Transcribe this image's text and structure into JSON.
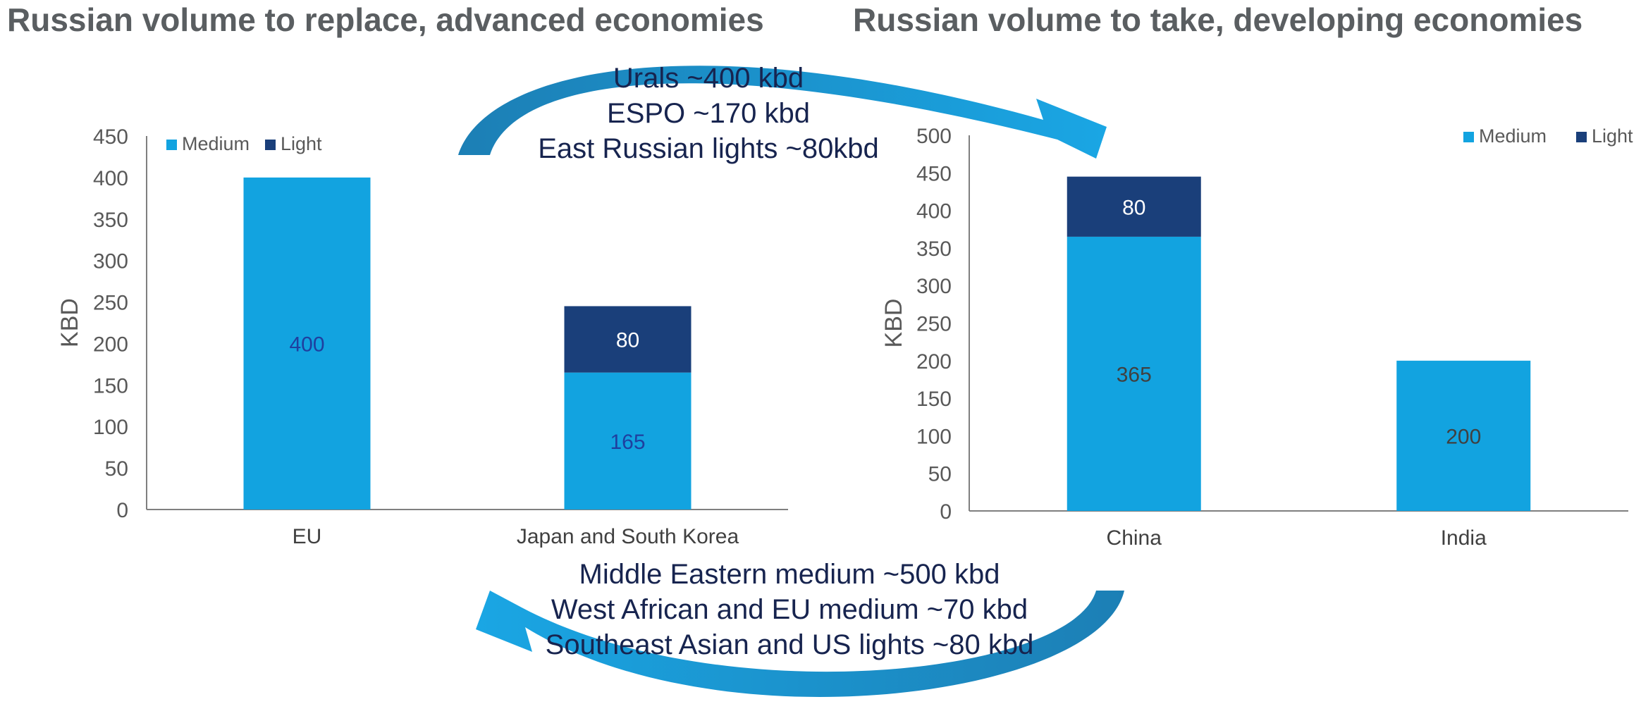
{
  "titles": {
    "left": "Russian volume to replace, advanced economies",
    "right": "Russian volume to take, developing economies"
  },
  "annotations": {
    "top": [
      "Urals ~400 kbd",
      "ESPO ~170 kbd",
      "East Russian lights ~80kbd"
    ],
    "bottom": [
      "Middle Eastern medium ~500 kbd",
      "West African and EU medium ~70 kbd",
      "Southeast Asian and US lights ~80 kbd"
    ]
  },
  "colors": {
    "medium": "#12a3e0",
    "light": "#1a3f7a",
    "arrow": "#1aa0db",
    "axis": "#7f7f7f"
  },
  "chart_data": [
    {
      "type": "bar",
      "stacked": true,
      "categories": [
        "EU",
        "Japan and South Korea"
      ],
      "series": [
        {
          "name": "Medium",
          "values": [
            400,
            165
          ],
          "labels": [
            "400",
            "165"
          ]
        },
        {
          "name": "Light",
          "values": [
            0,
            80
          ],
          "labels": [
            "",
            "80"
          ]
        }
      ],
      "ylabel": "KBD",
      "ylim": [
        0,
        450
      ],
      "yticks": [
        0,
        50,
        100,
        150,
        200,
        250,
        300,
        350,
        400,
        450
      ],
      "legend": "top-left",
      "grid": false
    },
    {
      "type": "bar",
      "stacked": true,
      "categories": [
        "China",
        "India"
      ],
      "series": [
        {
          "name": "Medium",
          "values": [
            365,
            200
          ],
          "labels": [
            "365",
            "200"
          ]
        },
        {
          "name": "Light",
          "values": [
            80,
            0
          ],
          "labels": [
            "80",
            ""
          ]
        }
      ],
      "ylabel": "KBD",
      "ylim": [
        0,
        500
      ],
      "yticks": [
        0,
        50,
        100,
        150,
        200,
        250,
        300,
        350,
        400,
        450,
        500
      ],
      "legend": "top-right",
      "grid": false
    }
  ]
}
